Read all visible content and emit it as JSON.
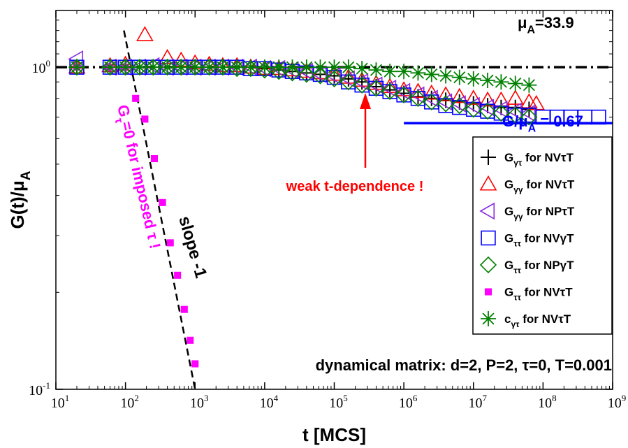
{
  "chart_data": {
    "type": "scatter",
    "title": "",
    "xlabel": "t [MCS]",
    "ylabel": "G(t)/μ_A",
    "x_scale": "log",
    "y_scale": "log",
    "xlim": [
      10,
      1000000000
    ],
    "ylim": [
      0.1,
      1.5
    ],
    "grid": false,
    "x_ticks": [
      {
        "value": 10,
        "base": "10",
        "exp": "1"
      },
      {
        "value": 100,
        "base": "10",
        "exp": "2"
      },
      {
        "value": 1000,
        "base": "10",
        "exp": "3"
      },
      {
        "value": 10000,
        "base": "10",
        "exp": "4"
      },
      {
        "value": 100000,
        "base": "10",
        "exp": "5"
      },
      {
        "value": 1000000,
        "base": "10",
        "exp": "6"
      },
      {
        "value": 10000000,
        "base": "10",
        "exp": "7"
      },
      {
        "value": 100000000,
        "base": "10",
        "exp": "8"
      },
      {
        "value": 1000000000,
        "base": "10",
        "exp": "9"
      }
    ],
    "y_ticks": [
      {
        "value": 0.1,
        "base": "10",
        "exp": "-1"
      },
      {
        "value": 1,
        "base": "10",
        "exp": "0"
      }
    ],
    "legend": {
      "placement": "right",
      "entries": [
        {
          "main": "G",
          "sub": "γτ",
          "rest": " for NVτT",
          "marker": "plus",
          "color": "#000000"
        },
        {
          "main": "G",
          "sub": "γγ",
          "rest": " for NVτT",
          "marker": "triangle-up",
          "color": "#ff0000"
        },
        {
          "main": "G",
          "sub": "γγ",
          "rest": " for NPτT",
          "marker": "triangle-left",
          "color": "#8b2be2"
        },
        {
          "main": "G",
          "sub": "ττ",
          "rest": " for NVγT",
          "marker": "square",
          "color": "#0000ff"
        },
        {
          "main": "G",
          "sub": "ττ",
          "rest": " for NPγT",
          "marker": "diamond",
          "color": "#008000"
        },
        {
          "main": "G",
          "sub": "ττ",
          "rest": " for NVτT",
          "marker": "filled-square",
          "color": "#ff00ff"
        },
        {
          "main": "c",
          "sub": "γτ",
          "rest": " for NVτT",
          "marker": "star",
          "color": "#008000"
        }
      ]
    },
    "series": [
      {
        "marker": "plus",
        "color": "#000000",
        "x": [
          20,
          60,
          100,
          160,
          250,
          400,
          630,
          1000,
          1600,
          2500,
          4000,
          6300,
          10000,
          16000,
          25000,
          40000,
          63000,
          100000,
          160000,
          250000,
          400000,
          630000,
          1000000,
          1600000,
          2500000,
          4000000,
          6300000,
          10000000,
          16000000,
          25000000,
          40000000,
          63000000
        ],
        "y": [
          1.0,
          1.0,
          1.0,
          1.0,
          1.0,
          1.0,
          1.0,
          1.0,
          1.0,
          1.0,
          1.0,
          1.0,
          0.99,
          0.98,
          0.97,
          0.96,
          0.95,
          0.94,
          0.92,
          0.9,
          0.87,
          0.85,
          0.83,
          0.81,
          0.8,
          0.79,
          0.78,
          0.77,
          0.76,
          0.75,
          0.75,
          0.74
        ]
      },
      {
        "marker": "triangle-up",
        "color": "#ff0000",
        "x": [
          20,
          60,
          100,
          190,
          400,
          630,
          1000,
          1600,
          2500,
          4000,
          6300,
          10000,
          16000,
          25000,
          40000,
          63000,
          100000,
          160000,
          250000,
          400000,
          630000,
          1000000,
          1600000,
          2500000,
          4000000,
          6300000,
          10000000,
          16000000,
          25000000,
          40000000,
          63000000,
          80000000
        ],
        "y": [
          1.0,
          1.01,
          1.02,
          1.26,
          1.07,
          1.05,
          1.03,
          1.02,
          1.01,
          1.01,
          1.0,
          0.99,
          0.99,
          0.98,
          0.97,
          0.96,
          0.95,
          0.93,
          0.91,
          0.89,
          0.87,
          0.85,
          0.84,
          0.83,
          0.82,
          0.81,
          0.8,
          0.79,
          0.79,
          0.8,
          0.78,
          0.77
        ]
      },
      {
        "marker": "triangle-left",
        "color": "#8b2be2",
        "x": [
          20,
          60,
          100,
          160,
          250,
          400,
          630,
          1000,
          1600,
          2500,
          4000,
          6300,
          10000,
          16000,
          25000,
          40000,
          63000,
          100000,
          160000,
          250000,
          400000,
          630000,
          1000000,
          1600000,
          2500000,
          4000000,
          6300000,
          10000000,
          16000000,
          25000000,
          40000000,
          63000000
        ],
        "y": [
          1.06,
          1.0,
          1.0,
          1.0,
          1.01,
          1.0,
          1.0,
          1.0,
          1.0,
          1.0,
          1.0,
          1.0,
          0.99,
          0.99,
          0.98,
          0.97,
          0.95,
          0.94,
          0.92,
          0.9,
          0.88,
          0.86,
          0.84,
          0.82,
          0.8,
          0.78,
          0.77,
          0.76,
          0.75,
          0.74,
          0.73,
          0.72
        ]
      },
      {
        "marker": "square",
        "color": "#0000ff",
        "x": [
          20,
          60,
          100,
          160,
          250,
          400,
          630,
          1000,
          1600,
          2500,
          4000,
          6300,
          10000,
          16000,
          25000,
          40000,
          63000,
          100000,
          160000,
          250000,
          400000,
          630000,
          1000000,
          1600000,
          2500000,
          4000000,
          6300000,
          10000000,
          16000000,
          25000000,
          40000000,
          63000000,
          100000000,
          160000000,
          250000000,
          400000000,
          630000000
        ],
        "y": [
          1.0,
          1.0,
          1.0,
          1.0,
          1.0,
          1.0,
          1.0,
          1.0,
          1.0,
          1.0,
          1.0,
          0.99,
          0.99,
          0.98,
          0.97,
          0.96,
          0.95,
          0.93,
          0.9,
          0.88,
          0.86,
          0.84,
          0.82,
          0.8,
          0.78,
          0.76,
          0.75,
          0.74,
          0.73,
          0.72,
          0.71,
          0.71,
          0.7,
          0.7,
          0.7,
          0.7,
          0.7
        ]
      },
      {
        "marker": "diamond",
        "color": "#008000",
        "x": [
          20,
          60,
          100,
          160,
          250,
          400,
          630,
          1000,
          1600,
          2500,
          4000,
          6300,
          10000,
          16000,
          25000,
          40000,
          63000,
          100000,
          160000,
          250000,
          400000,
          630000,
          1000000,
          1600000,
          2500000,
          4000000,
          6300000,
          10000000,
          16000000,
          25000000,
          40000000,
          63000000
        ],
        "y": [
          1.0,
          1.0,
          1.0,
          1.0,
          1.0,
          1.0,
          1.0,
          1.0,
          1.0,
          1.0,
          0.99,
          0.99,
          0.98,
          0.97,
          0.96,
          0.95,
          0.94,
          0.92,
          0.9,
          0.88,
          0.86,
          0.84,
          0.82,
          0.8,
          0.78,
          0.77,
          0.76,
          0.74,
          0.73,
          0.72,
          0.71,
          0.7
        ]
      },
      {
        "marker": "filled-square",
        "color": "#ff00ff",
        "x": [
          20,
          60,
          100,
          140,
          190,
          260,
          340,
          440,
          560,
          700,
          850,
          1000
        ],
        "y": [
          1.0,
          1.0,
          1.0,
          0.8,
          0.69,
          0.52,
          0.38,
          0.285,
          0.226,
          0.177,
          0.142,
          0.12
        ]
      },
      {
        "marker": "star",
        "color": "#008000",
        "x": [
          20,
          60,
          100,
          160,
          250,
          400,
          630,
          1000,
          1600,
          2500,
          4000,
          6300,
          10000,
          16000,
          25000,
          40000,
          63000,
          100000,
          160000,
          250000,
          400000,
          630000,
          1000000,
          1600000,
          2500000,
          4000000,
          6300000,
          10000000,
          16000000,
          25000000,
          40000000,
          63000000
        ],
        "y": [
          1.0,
          1.0,
          1.0,
          1.0,
          1.0,
          1.0,
          1.0,
          1.0,
          1.0,
          1.0,
          1.0,
          1.0,
          1.0,
          1.0,
          1.0,
          1.0,
          1.0,
          1.0,
          1.0,
          0.99,
          0.98,
          0.97,
          0.97,
          0.96,
          0.95,
          0.94,
          0.93,
          0.92,
          0.91,
          0.9,
          0.89,
          0.88
        ]
      }
    ],
    "reference_lines": [
      {
        "style": "dash-dot",
        "color": "#000000",
        "x": [
          10,
          1000000000
        ],
        "y": [
          1.0,
          1.0
        ]
      },
      {
        "style": "solid",
        "color": "#0000ff",
        "x": [
          1000000,
          1000000000
        ],
        "y": [
          0.67,
          0.67
        ]
      },
      {
        "style": "dashed",
        "color": "#000000",
        "x": [
          95,
          1000
        ],
        "y": [
          1.3,
          0.1
        ]
      }
    ],
    "annotations": {
      "mu_a": {
        "main": "μ",
        "sub": "A",
        "rest": "=33.9",
        "color": "#000000"
      },
      "plateau": {
        "main": "G/μ",
        "sub": "A",
        "rest": " = 0.67",
        "color": "#0000ff"
      },
      "weak": {
        "text": "weak t-dependence !",
        "color": "#ff0000"
      },
      "slope": {
        "text": "slope -1",
        "color": "#000000"
      },
      "imposed": {
        "main": "G",
        "sub": "τ",
        "rest": "=0 for imposed τ !",
        "color": "#ff00ff"
      },
      "conditions": {
        "text": "dynamical matrix: d=2, P=2, τ=0, T=0.001",
        "color": "#000000"
      },
      "arrow_color": "#ff0000"
    }
  }
}
